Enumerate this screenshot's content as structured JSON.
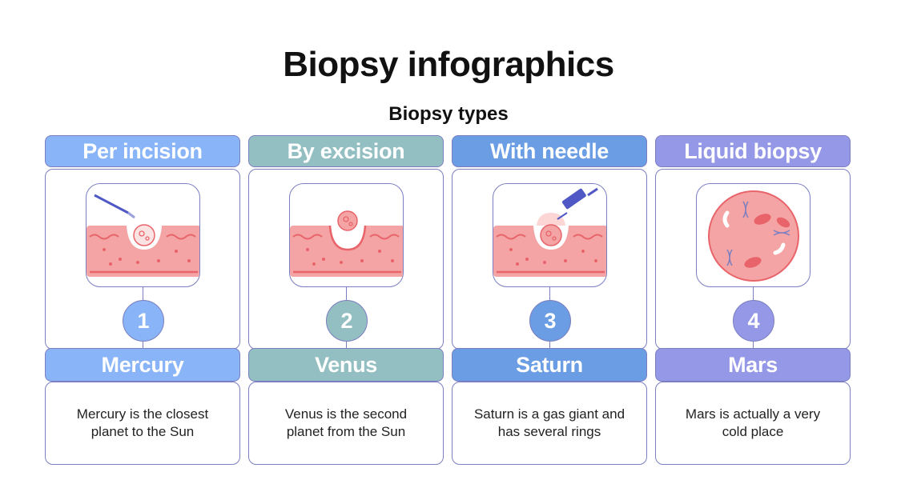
{
  "title": "Biopsy infographics",
  "subtitle": "Biopsy types",
  "colors": {
    "blue_light": "#89b4f7",
    "teal": "#93bfc2",
    "blue": "#6a9de3",
    "purple": "#9598e6",
    "tissue": "#f4a4a4",
    "tissue_line": "#e8646a",
    "outline": "#7b7fc0"
  },
  "columns": [
    {
      "header": "Per incision",
      "number": "1",
      "name": "Mercury",
      "description": "Mercury is the closest planet to the Sun",
      "color": "#89b4f7",
      "icon": "incision-scalpel-icon"
    },
    {
      "header": "By excision",
      "number": "2",
      "name": "Venus",
      "description": "Venus is the second planet from the Sun",
      "color": "#93bfc2",
      "icon": "excision-tissue-icon"
    },
    {
      "header": "With needle",
      "number": "3",
      "name": "Saturn",
      "description": "Saturn is a gas giant and has several rings",
      "color": "#6a9de3",
      "icon": "needle-syringe-icon"
    },
    {
      "header": "Liquid biopsy",
      "number": "4",
      "name": "Mars",
      "description": "Mars is actually a very cold place",
      "color": "#9598e6",
      "icon": "blood-cells-icon"
    }
  ]
}
